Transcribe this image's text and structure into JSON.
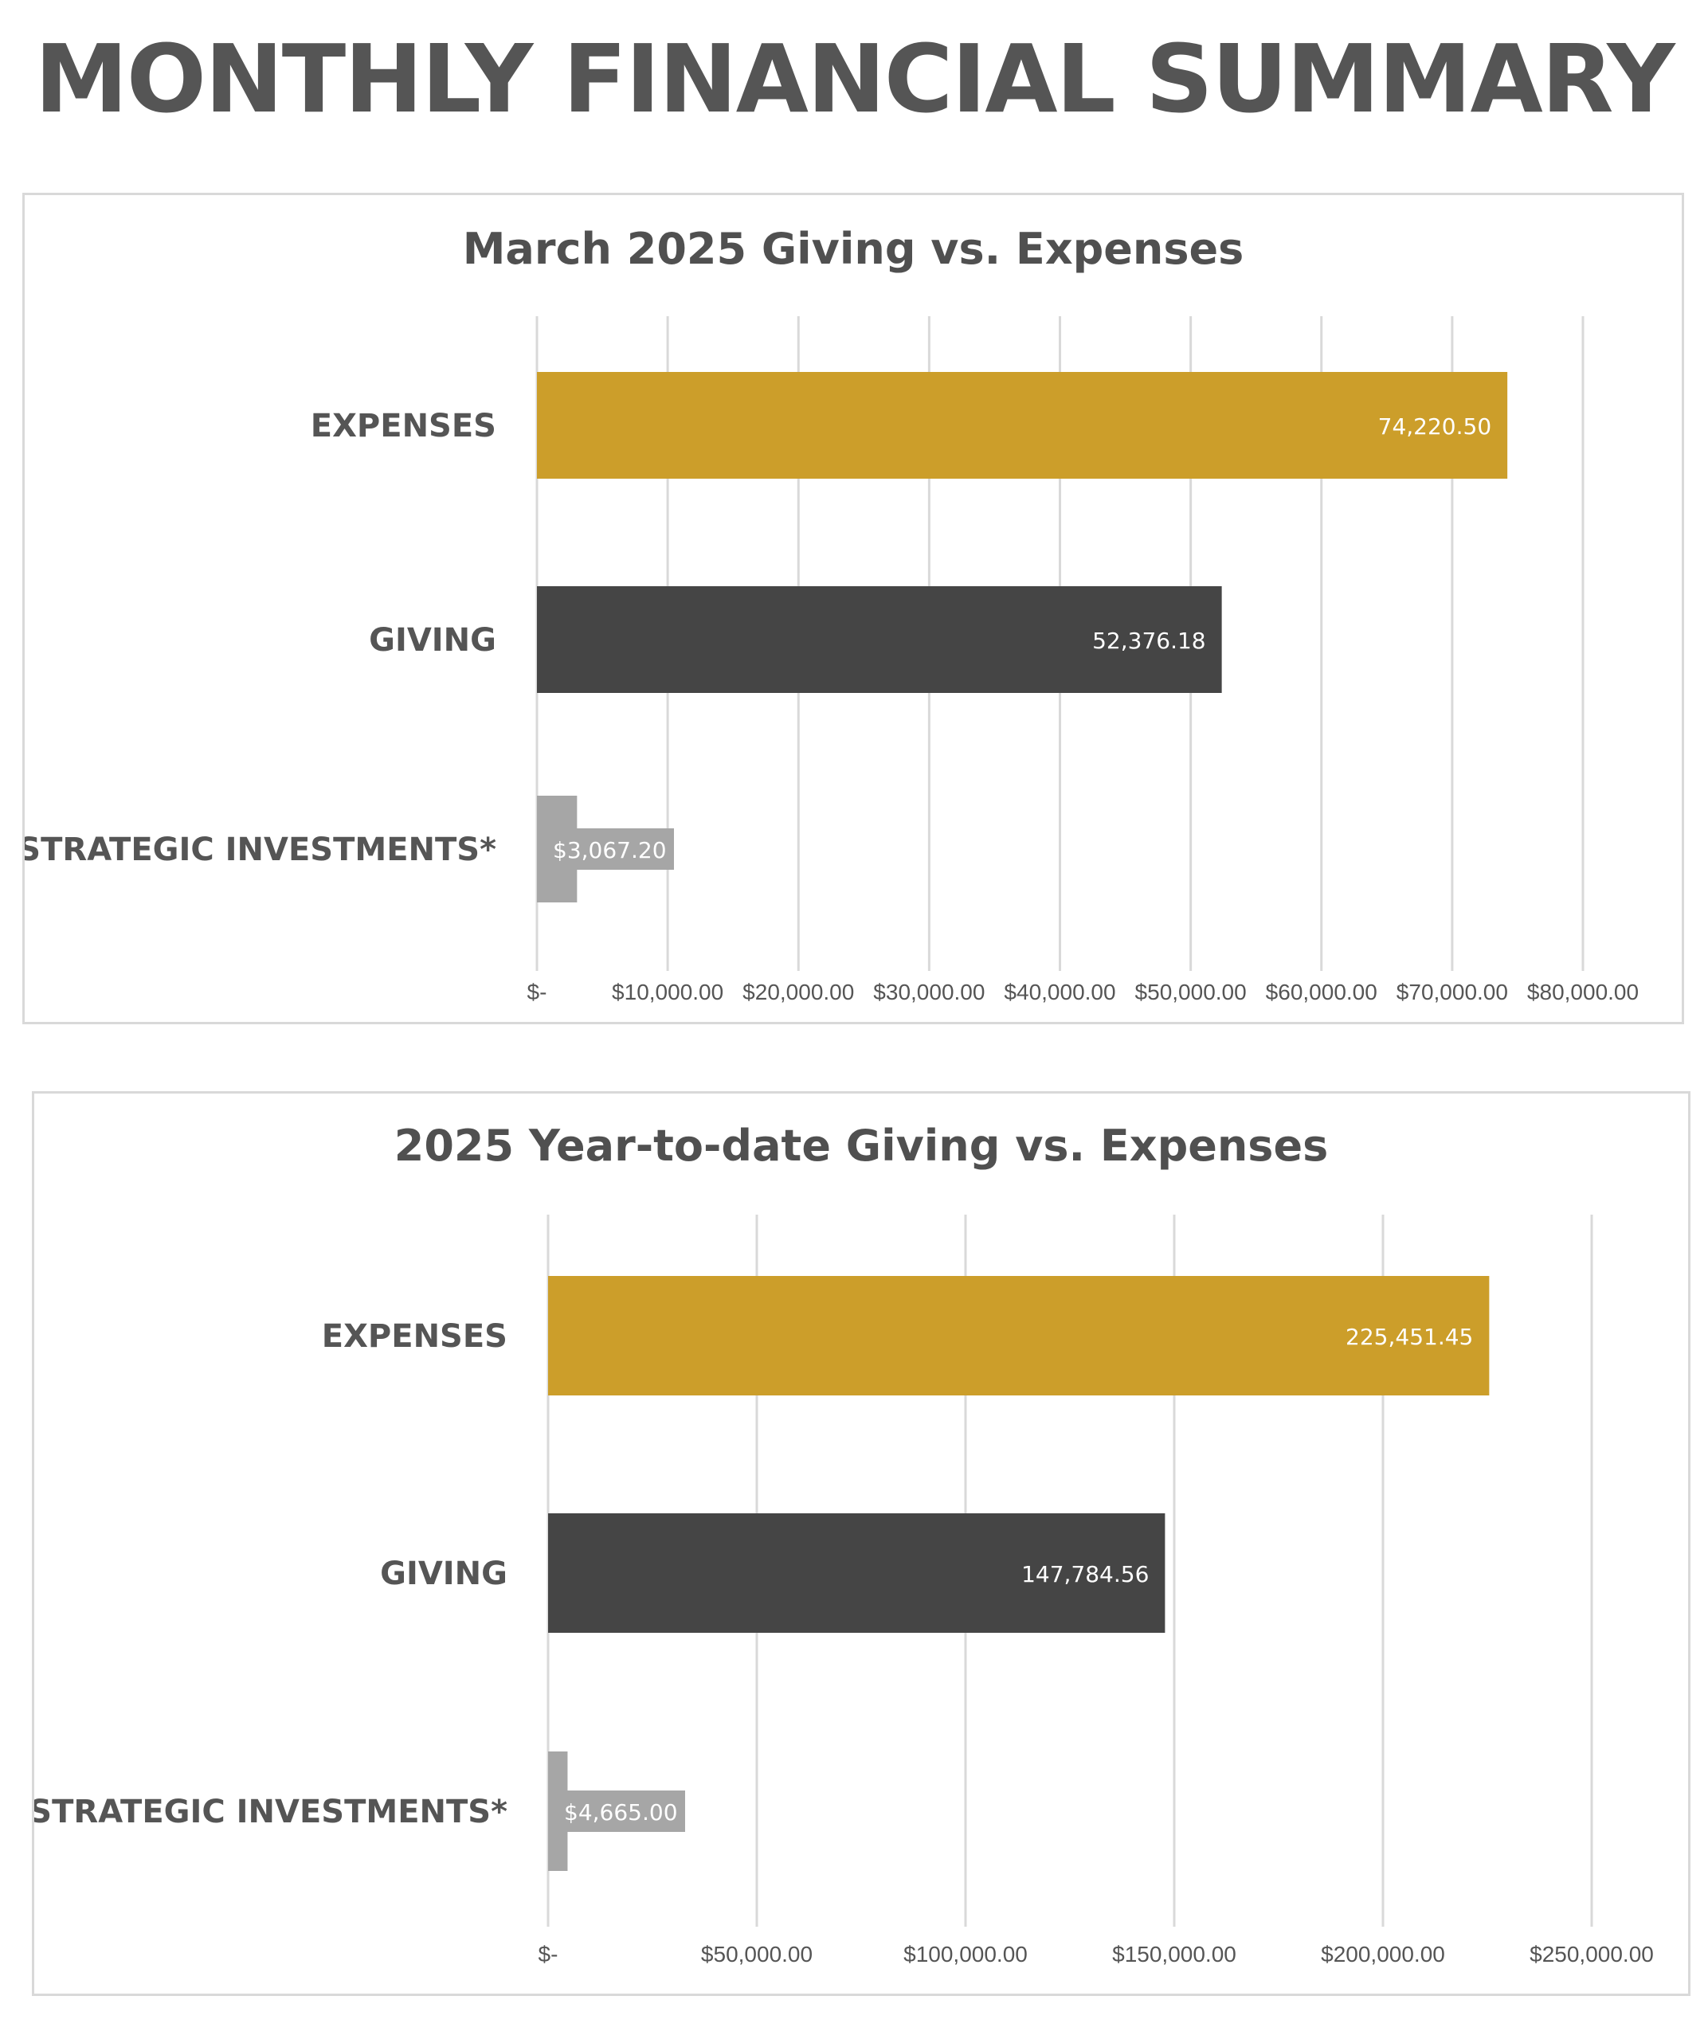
{
  "page": {
    "title": "MONTHLY FINANCIAL SUMMARY"
  },
  "colors": {
    "expenses": "#cc9e2a",
    "giving": "#454545",
    "strategic": "#a6a6a6",
    "grid": "#d9d9d9",
    "text": "#555555",
    "label_text": "#ffffff"
  },
  "chart_data": [
    {
      "type": "bar",
      "orientation": "horizontal",
      "title": "March 2025 Giving vs. Expenses",
      "categories": [
        "EXPENSES",
        "GIVING",
        "STRATEGIC INVESTMENTS*"
      ],
      "values": [
        74220.5,
        52376.18,
        3067.2
      ],
      "data_labels": [
        "74,220.50",
        "52,376.18",
        "$3,067.20"
      ],
      "xlim": [
        0,
        80000
      ],
      "ticks": [
        0,
        10000,
        20000,
        30000,
        40000,
        50000,
        60000,
        70000,
        80000
      ],
      "tick_labels": [
        "$-",
        "$10,000.00",
        "$20,000.00",
        "$30,000.00",
        "$40,000.00",
        "$50,000.00",
        "$60,000.00",
        "$70,000.00",
        "$80,000.00"
      ],
      "grid": true,
      "legend": "none"
    },
    {
      "type": "bar",
      "orientation": "horizontal",
      "title": "2025 Year-to-date Giving vs. Expenses",
      "categories": [
        "EXPENSES",
        "GIVING",
        "STRATEGIC INVESTMENTS*"
      ],
      "values": [
        225451.45,
        147784.56,
        4665.0
      ],
      "data_labels": [
        "225,451.45",
        "147,784.56",
        "$4,665.00"
      ],
      "xlim": [
        0,
        250000
      ],
      "ticks": [
        0,
        50000,
        100000,
        150000,
        200000,
        250000
      ],
      "tick_labels": [
        "$-",
        "$50,000.00",
        "$100,000.00",
        "$150,000.00",
        "$200,000.00",
        "$250,000.00"
      ],
      "grid": true,
      "legend": "none"
    }
  ]
}
